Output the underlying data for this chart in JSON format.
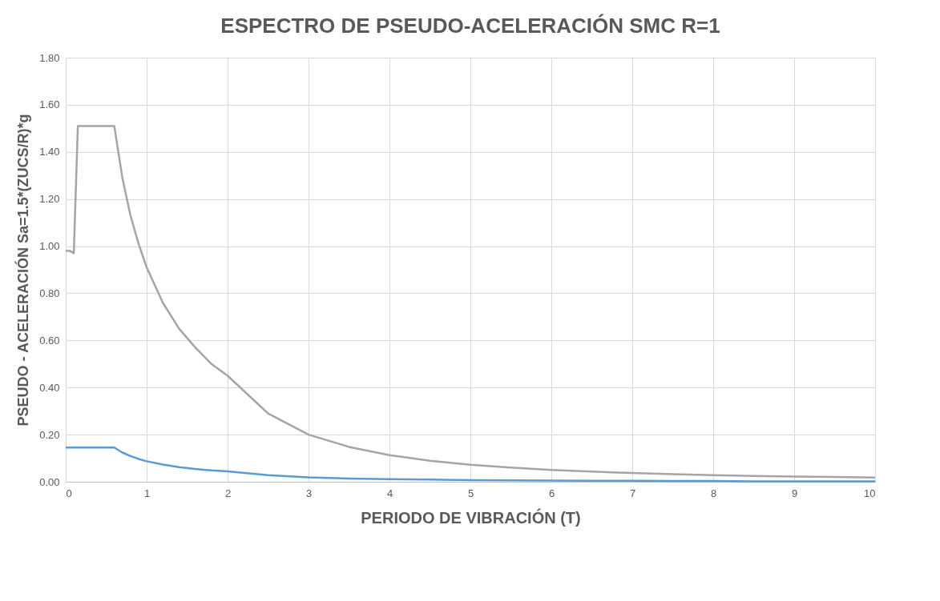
{
  "chart_data": {
    "type": "line",
    "title": "ESPECTRO DE PSEUDO-ACELERACIÓN SMC R=1",
    "xlabel": "PERIODO DE VIBRACIÓN (T)",
    "ylabel": "PSEUDO  - ACELERACIÓN  Sa=1.5*(ZUCS/R)*g",
    "x": [
      0,
      0.05,
      0.1,
      0.15,
      0.2,
      0.3,
      0.4,
      0.5,
      0.6,
      0.7,
      0.8,
      0.9,
      1,
      1.2,
      1.4,
      1.6,
      1.8,
      2,
      2.5,
      3,
      3.5,
      4,
      4.5,
      5,
      5.5,
      6,
      6.5,
      7,
      7.5,
      8,
      8.5,
      9,
      9.5,
      10
    ],
    "series": [
      {
        "color": "#a5a5a5",
        "values": [
          0.98,
          0.98,
          0.97,
          1.51,
          1.51,
          1.51,
          1.51,
          1.51,
          1.51,
          1.29,
          1.13,
          1.01,
          0.91,
          0.76,
          0.65,
          0.57,
          0.5,
          0.45,
          0.29,
          0.2,
          0.148,
          0.113,
          0.089,
          0.072,
          0.06,
          0.05,
          0.043,
          0.037,
          0.032,
          0.028,
          0.025,
          0.022,
          0.02,
          0.018
        ]
      },
      {
        "color": "#5b9bd5",
        "values": [
          0.145,
          0.145,
          0.145,
          0.145,
          0.145,
          0.145,
          0.145,
          0.145,
          0.145,
          0.124,
          0.109,
          0.097,
          0.087,
          0.073,
          0.062,
          0.054,
          0.048,
          0.044,
          0.028,
          0.019,
          0.014,
          0.011,
          0.009,
          0.007,
          0.006,
          0.005,
          0.004,
          0.004,
          0.003,
          0.003,
          0.002,
          0.002,
          0.002,
          0.002
        ]
      }
    ],
    "xlim": [
      0,
      10
    ],
    "xticks": [
      0,
      1,
      2,
      3,
      4,
      5,
      6,
      7,
      8,
      9,
      10
    ],
    "ylim": [
      0,
      1.8
    ],
    "yticks": [
      {
        "value": 0,
        "label": "0.00"
      },
      {
        "value": 0.2,
        "label": "0.20"
      },
      {
        "value": 0.4,
        "label": "0.40"
      },
      {
        "value": 0.6,
        "label": "0.60"
      },
      {
        "value": 0.8,
        "label": "0.80"
      },
      {
        "value": 1.0,
        "label": "1.00"
      },
      {
        "value": 1.2,
        "label": "1.20"
      },
      {
        "value": 1.4,
        "label": "1.40"
      },
      {
        "value": 1.6,
        "label": "1.60"
      },
      {
        "value": 1.8,
        "label": "1.80"
      }
    ],
    "grid": true,
    "marker": "none",
    "line_style": "solid"
  }
}
